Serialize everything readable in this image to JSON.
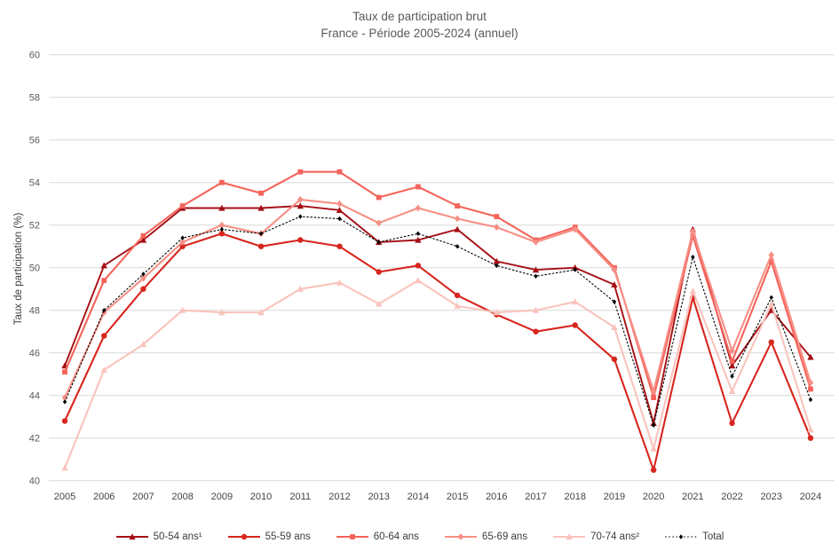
{
  "title": {
    "line1": "Taux de participation brut",
    "line2": "France - Période 2005-2024 (annuel)"
  },
  "y_axis_label": "Taux de participation (%)",
  "chart_data": {
    "type": "line",
    "title": "Taux de participation brut",
    "subtitle": "France - Période 2005-2024 (annuel)",
    "xlabel": "",
    "ylabel": "Taux de participation (%)",
    "ylim": [
      40,
      60
    ],
    "y_ticks": [
      40,
      42,
      44,
      46,
      48,
      50,
      52,
      54,
      56,
      58,
      60
    ],
    "grid": true,
    "legend_position": "bottom",
    "x": [
      2005,
      2006,
      2007,
      2008,
      2009,
      2010,
      2011,
      2012,
      2013,
      2014,
      2015,
      2016,
      2017,
      2018,
      2019,
      2020,
      2021,
      2022,
      2023,
      2024
    ],
    "series": [
      {
        "name": "50-54 ans¹",
        "color": "#a50f15",
        "marker": "triangle",
        "line_style": "solid",
        "values": [
          45.4,
          50.1,
          51.3,
          52.8,
          52.8,
          52.8,
          52.9,
          52.7,
          51.2,
          51.3,
          51.8,
          50.3,
          49.9,
          50.0,
          49.2,
          42.7,
          51.8,
          45.4,
          48.0,
          45.8
        ]
      },
      {
        "name": "55-59 ans",
        "color": "#d7261e",
        "marker": "circle",
        "line_style": "solid",
        "values": [
          42.8,
          46.8,
          49.0,
          51.0,
          51.6,
          51.0,
          51.3,
          51.0,
          49.8,
          50.1,
          48.7,
          47.8,
          47.0,
          47.3,
          45.7,
          40.5,
          48.6,
          42.7,
          46.5,
          42.0
        ]
      },
      {
        "name": "60-64 ans",
        "color": "#f4635a",
        "marker": "square",
        "line_style": "solid",
        "values": [
          45.1,
          49.4,
          51.5,
          52.9,
          54.0,
          53.5,
          54.5,
          54.5,
          53.3,
          53.8,
          52.9,
          52.4,
          51.3,
          51.9,
          50.0,
          43.9,
          51.5,
          45.6,
          50.3,
          44.3
        ]
      },
      {
        "name": "65-69 ans",
        "color": "#f78f85",
        "marker": "diamond",
        "line_style": "solid",
        "values": [
          43.9,
          47.9,
          49.5,
          51.2,
          52.0,
          51.6,
          53.2,
          53.0,
          52.1,
          52.8,
          52.3,
          51.9,
          51.2,
          51.8,
          49.9,
          44.2,
          51.7,
          46.1,
          50.6,
          44.6
        ]
      },
      {
        "name": "70-74 ans²",
        "color": "#f9c3bc",
        "marker": "triangle",
        "line_style": "solid",
        "values": [
          40.6,
          45.2,
          46.4,
          48.0,
          47.9,
          47.9,
          49.0,
          49.3,
          48.3,
          49.4,
          48.2,
          47.9,
          48.0,
          48.4,
          47.2,
          41.5,
          48.9,
          44.2,
          48.3,
          42.4
        ]
      },
      {
        "name": "Total",
        "color": "#000000",
        "marker": "diamond-small",
        "line_style": "dotted",
        "values": [
          43.7,
          48.0,
          49.7,
          51.4,
          51.8,
          51.6,
          52.4,
          52.3,
          51.2,
          51.6,
          51.0,
          50.1,
          49.6,
          49.9,
          48.4,
          42.6,
          50.5,
          44.9,
          48.6,
          43.8
        ]
      }
    ]
  }
}
